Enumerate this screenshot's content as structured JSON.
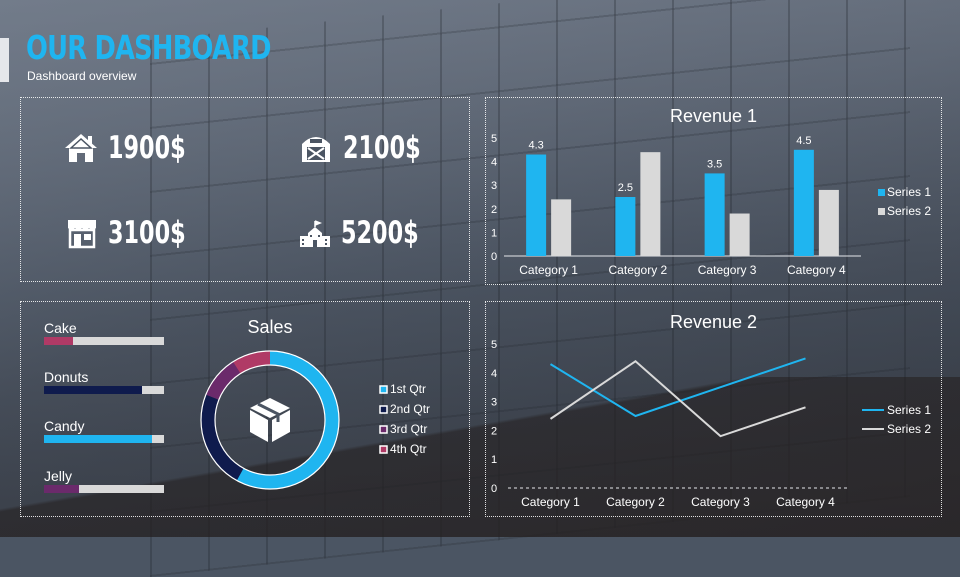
{
  "header": {
    "title": "OUR DASHBOARD",
    "subtitle": "Dashboard overview"
  },
  "kpis": [
    {
      "icon": "house-icon",
      "value": "1900$"
    },
    {
      "icon": "barn-icon",
      "value": "2100$"
    },
    {
      "icon": "store-icon",
      "value": "3100$"
    },
    {
      "icon": "school-building-icon",
      "value": "5200$"
    }
  ],
  "colors": {
    "accent": "#1fb5f0",
    "series_gray": "#d9d9d9",
    "navy": "#0f1b4d",
    "purple": "#6b2a6b",
    "rose": "#b03a66"
  },
  "products": [
    {
      "label": "Cake",
      "level": 0.24,
      "color": "#b03a66"
    },
    {
      "label": "Donuts",
      "level": 0.82,
      "color": "#0f1b4d"
    },
    {
      "label": "Candy",
      "level": 0.9,
      "color": "#1fb5f0"
    },
    {
      "label": "Jelly",
      "level": 0.29,
      "color": "#6b2a6b"
    }
  ],
  "chart_data": [
    {
      "type": "bar",
      "title": "Revenue 1",
      "categories": [
        "Category 1",
        "Category 2",
        "Category 3",
        "Category 4"
      ],
      "series": [
        {
          "name": "Series 1",
          "values": [
            4.3,
            2.5,
            3.5,
            4.5
          ],
          "color": "#1fb5f0"
        },
        {
          "name": "Series 2",
          "values": [
            2.4,
            4.4,
            1.8,
            2.8
          ],
          "color": "#d9d9d9"
        }
      ],
      "data_labels": [
        "4.3",
        "2.5",
        "3.5",
        "4.5"
      ],
      "ylim": [
        0,
        5
      ],
      "yticks": [
        "0",
        "1",
        "2",
        "3",
        "4",
        "5"
      ],
      "legend": "right"
    },
    {
      "type": "pie",
      "title": "Sales",
      "categories": [
        "1st Qtr",
        "2nd Qtr",
        "3rd Qtr",
        "4th Qtr"
      ],
      "values": [
        58,
        23,
        10,
        9
      ],
      "colors": [
        "#1fb5f0",
        "#0f1b4d",
        "#6b2a6b",
        "#b03a66"
      ],
      "center_icon": "box-icon",
      "legend": "right"
    },
    {
      "type": "line",
      "title": "Revenue 2",
      "categories": [
        "Category 1",
        "Category 2",
        "Category 3",
        "Category 4"
      ],
      "series": [
        {
          "name": "Series 1",
          "values": [
            4.3,
            2.5,
            3.5,
            4.5
          ],
          "color": "#1fb5f0"
        },
        {
          "name": "Series 2",
          "values": [
            2.4,
            4.4,
            1.8,
            2.8
          ],
          "color": "#d9d9d9"
        }
      ],
      "ylim": [
        0,
        5
      ],
      "yticks": [
        "0",
        "1",
        "2",
        "3",
        "4",
        "5"
      ],
      "legend": "right"
    }
  ]
}
